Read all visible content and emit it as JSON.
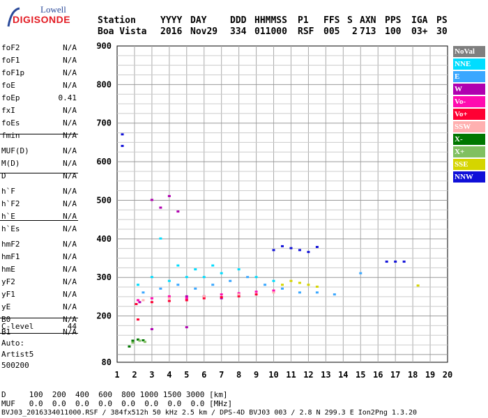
{
  "logo": {
    "line1": "Lowell",
    "line2": "DIGISONDE"
  },
  "header": {
    "row1": [
      "Station",
      "YYYY",
      "DAY",
      "DDD",
      "HHMMSS",
      "P1",
      "FFS",
      "S",
      "AXN",
      "PPS",
      "IGA",
      "PS"
    ],
    "row2": [
      "Boa Vista",
      "2016",
      "Nov29",
      "334",
      "011000",
      "RSF",
      "005",
      "2",
      "713",
      "100",
      "03+",
      "30"
    ]
  },
  "params": [
    {
      "name": "foF2",
      "value": "N/A"
    },
    {
      "name": "foF1",
      "value": "N/A"
    },
    {
      "name": "foF1p",
      "value": "N/A"
    },
    {
      "name": "foE",
      "value": "N/A"
    },
    {
      "name": "foEp",
      "value": "0.41"
    },
    {
      "name": "fxI",
      "value": "N/A"
    },
    {
      "name": "foEs",
      "value": "N/A"
    },
    {
      "name": "fmin",
      "value": "N/A"
    },
    {
      "name": "MUF(D)",
      "value": "N/A"
    },
    {
      "name": "M(D)",
      "value": "N/A"
    },
    {
      "name": "D",
      "value": "N/A"
    },
    {
      "name": "h`F",
      "value": "N/A"
    },
    {
      "name": "h`F2",
      "value": "N/A"
    },
    {
      "name": "h`E",
      "value": "N/A"
    },
    {
      "name": "h`Es",
      "value": "N/A"
    },
    {
      "name": "hmF2",
      "value": "N/A"
    },
    {
      "name": "hmF1",
      "value": "N/A"
    },
    {
      "name": "hmE",
      "value": "N/A"
    },
    {
      "name": "yF2",
      "value": "N/A"
    },
    {
      "name": "yF1",
      "value": "N/A"
    },
    {
      "name": "yE",
      "value": "N/A"
    },
    {
      "name": "B0",
      "value": "N/A"
    },
    {
      "name": "B1",
      "value": "N/A"
    },
    {
      "name": "C-level",
      "value": "44"
    }
  ],
  "autoscaling": {
    "line1": "Auto:",
    "line2": "Artist5",
    "line3": "500200"
  },
  "legend": [
    {
      "label": "NoVal",
      "color": "#7f7f7f"
    },
    {
      "label": "NNE",
      "color": "#00ddff"
    },
    {
      "label": "E",
      "color": "#3aa7ff"
    },
    {
      "label": "W",
      "color": "#b000b0"
    },
    {
      "label": "Vo-",
      "color": "#ff0bb0"
    },
    {
      "label": "Vo+",
      "color": "#ff0033"
    },
    {
      "label": "SSW",
      "color": "#ffb0b0"
    },
    {
      "label": "X-",
      "color": "#007700"
    },
    {
      "label": "X+",
      "color": "#80c060"
    },
    {
      "label": "SSE",
      "color": "#d5d500"
    },
    {
      "label": "NNW",
      "color": "#1010d8"
    }
  ],
  "footer": {
    "d_row": "D     100  200  400  600  800 1000 1500 3000 [km]",
    "muf_row": "MUF   0.0  0.0  0.0  0.0  0.0  0.0  0.0  0.0 [MHz]",
    "info": "BVJ03_2016334011000.RSF / 384fx512h 50 kHz 2.5 km / DPS-4D BVJ03 003 / 2.8 N 299.3 E Ion2Png 1.3.20"
  },
  "chart_data": {
    "type": "scatter",
    "xlim": [
      1,
      20
    ],
    "ylim": [
      80,
      900
    ],
    "xticks": [
      1,
      2,
      3,
      4,
      5,
      6,
      7,
      8,
      9,
      10,
      11,
      12,
      13,
      14,
      15,
      16,
      17,
      18,
      19,
      20
    ],
    "yticks": [
      80,
      200,
      300,
      400,
      500,
      600,
      700,
      800,
      900
    ],
    "grid": true,
    "series": [
      {
        "name": "NNE",
        "points": [
          [
            2.2,
            280
          ],
          [
            3,
            300
          ],
          [
            4,
            290
          ],
          [
            5,
            300
          ],
          [
            6,
            300
          ],
          [
            7,
            310
          ],
          [
            8,
            320
          ],
          [
            9,
            300
          ],
          [
            10,
            290
          ],
          [
            3.5,
            400
          ],
          [
            4.5,
            330
          ],
          [
            5.5,
            320
          ],
          [
            6.5,
            330
          ]
        ]
      },
      {
        "name": "E",
        "points": [
          [
            2.5,
            260
          ],
          [
            3.5,
            270
          ],
          [
            4.5,
            280
          ],
          [
            5.5,
            270
          ],
          [
            6.5,
            280
          ],
          [
            7.5,
            290
          ],
          [
            8.5,
            300
          ],
          [
            9.5,
            280
          ],
          [
            10.5,
            270
          ],
          [
            11.5,
            260
          ],
          [
            12.5,
            260
          ],
          [
            13.5,
            255
          ],
          [
            15,
            310
          ]
        ]
      },
      {
        "name": "W",
        "points": [
          [
            2.3,
            235
          ],
          [
            3,
            500
          ],
          [
            3.5,
            480
          ],
          [
            4,
            510
          ],
          [
            4.5,
            470
          ],
          [
            5,
            250
          ],
          [
            6,
            250
          ],
          [
            7,
            245
          ],
          [
            8,
            255
          ],
          [
            3,
            165
          ],
          [
            5,
            170
          ]
        ]
      },
      {
        "name": "Vo-",
        "points": [
          [
            2.2,
            240
          ],
          [
            3,
            245
          ],
          [
            4,
            250
          ],
          [
            5,
            245
          ],
          [
            6,
            250
          ],
          [
            7,
            255
          ],
          [
            8,
            258
          ],
          [
            9,
            262
          ],
          [
            10,
            265
          ]
        ]
      },
      {
        "name": "Vo+",
        "points": [
          [
            2.1,
            230
          ],
          [
            3,
            235
          ],
          [
            4,
            238
          ],
          [
            5,
            240
          ],
          [
            6,
            245
          ],
          [
            7,
            248
          ],
          [
            8,
            250
          ],
          [
            9,
            255
          ],
          [
            2.2,
            190
          ]
        ]
      },
      {
        "name": "SSW",
        "points": [
          [
            2.5,
            240
          ],
          [
            4,
            245
          ],
          [
            6,
            250
          ],
          [
            8,
            255
          ],
          [
            10,
            260
          ]
        ]
      },
      {
        "name": "X-",
        "points": [
          [
            1.9,
            135
          ],
          [
            2.2,
            138
          ],
          [
            2.5,
            136
          ],
          [
            1.7,
            120
          ]
        ]
      },
      {
        "name": "X+",
        "points": [
          [
            1.9,
            130
          ],
          [
            2.3,
            135
          ],
          [
            2.6,
            132
          ]
        ]
      },
      {
        "name": "SSE",
        "points": [
          [
            10.5,
            280
          ],
          [
            11,
            290
          ],
          [
            11.5,
            285
          ],
          [
            12,
            280
          ],
          [
            12.5,
            275
          ],
          [
            18.3,
            278
          ]
        ]
      },
      {
        "name": "NNW",
        "points": [
          [
            10,
            370
          ],
          [
            10.5,
            380
          ],
          [
            11,
            375
          ],
          [
            11.5,
            370
          ],
          [
            12,
            365
          ],
          [
            12.5,
            378
          ],
          [
            16.5,
            340
          ],
          [
            17,
            340
          ],
          [
            17.5,
            340
          ],
          [
            1.3,
            670
          ],
          [
            1.3,
            640
          ]
        ]
      }
    ]
  }
}
